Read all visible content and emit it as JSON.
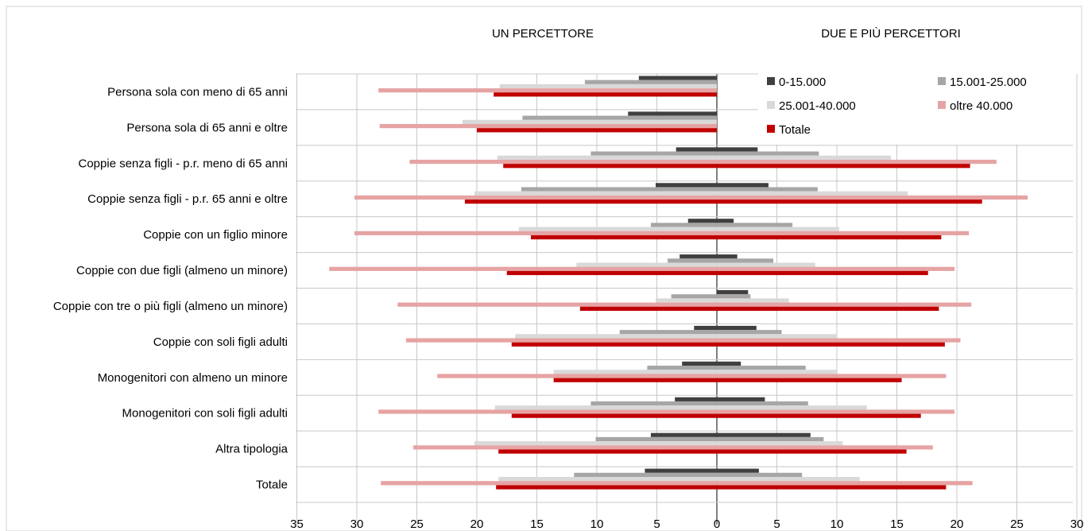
{
  "chart_data": {
    "type": "bar",
    "orientation": "horizontal",
    "panel_titles": [
      "UN PERCETTORE",
      "DUE E PIÙ PERCETTORI"
    ],
    "categories": [
      "Persona sola con meno di 65 anni",
      "Persona sola di 65 anni e oltre",
      "Coppie senza figli - p.r. meno di 65 anni",
      "Coppie senza figli - p.r. 65 anni e oltre",
      "Coppie con un figlio minore",
      "Coppie con due figli (almeno un minore)",
      "Coppie con tre o più figli (almeno un minore)",
      "Coppie con soli figli adulti",
      "Monogenitori con almeno un minore",
      "Monogenitori con soli figli adulti",
      "Altra tipologia",
      "Totale"
    ],
    "x_tick_labels": [
      "35",
      "30",
      "25",
      "20",
      "15",
      "10",
      "5",
      "0",
      "5",
      "10",
      "15",
      "20",
      "25",
      "30"
    ],
    "xlim_left": [
      0,
      35
    ],
    "xlim_right": [
      0,
      30
    ],
    "grid": "vertical",
    "legend_position": "top-right",
    "series": [
      {
        "name": "0-15.000",
        "color": "#404040",
        "un_percettore": [
          6.5,
          7.4,
          3.4,
          5.1,
          2.4,
          3.1,
          0,
          1.9,
          2.9,
          3.5,
          5.5,
          6.0
        ],
        "due_e_piu": [
          null,
          null,
          3.4,
          4.3,
          1.4,
          1.7,
          2.6,
          3.3,
          2.0,
          4.0,
          7.8,
          3.5
        ]
      },
      {
        "name": "15.001-25.000",
        "color": "#a6a6a6",
        "un_percettore": [
          11.0,
          16.2,
          10.5,
          16.3,
          5.5,
          4.1,
          3.8,
          8.1,
          5.8,
          10.5,
          10.1,
          11.9
        ],
        "due_e_piu": [
          null,
          null,
          8.5,
          8.4,
          6.3,
          4.7,
          2.8,
          5.4,
          7.4,
          7.6,
          8.9,
          7.1
        ]
      },
      {
        "name": "25.001-40.000",
        "color": "#d9d9d9",
        "un_percettore": [
          18.1,
          21.2,
          18.3,
          20.2,
          16.5,
          11.7,
          5.1,
          16.8,
          13.6,
          18.5,
          20.2,
          18.2
        ],
        "due_e_piu": [
          null,
          null,
          14.5,
          15.9,
          10.2,
          8.2,
          6.0,
          10.0,
          10.0,
          12.5,
          10.5,
          11.9
        ]
      },
      {
        "name": "oltre 40.000",
        "color": "#e6a3a3",
        "un_percettore": [
          28.2,
          28.1,
          25.6,
          30.2,
          30.2,
          32.3,
          26.6,
          25.9,
          23.3,
          28.2,
          25.3,
          28.0
        ],
        "due_e_piu": [
          null,
          null,
          23.3,
          25.9,
          21.0,
          19.8,
          21.2,
          20.3,
          19.1,
          19.8,
          18.0,
          21.3
        ]
      },
      {
        "name": "Totale",
        "color": "#c00000",
        "un_percettore": [
          18.6,
          20.0,
          17.8,
          21.0,
          15.5,
          17.5,
          11.4,
          17.1,
          13.6,
          17.1,
          18.2,
          18.4
        ],
        "due_e_piu": [
          null,
          null,
          21.1,
          22.1,
          18.7,
          17.6,
          18.5,
          19.0,
          15.4,
          17.0,
          15.8,
          19.1
        ]
      }
    ]
  }
}
